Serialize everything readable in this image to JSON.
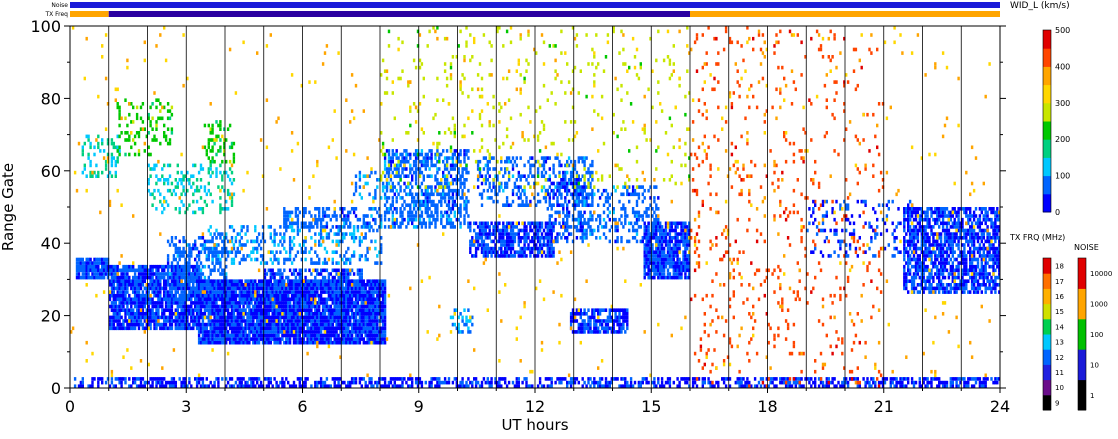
{
  "chart_data": {
    "type": "heatmap",
    "xlabel": "UT hours",
    "ylabel": "Range Gate",
    "xlim": [
      0,
      24
    ],
    "ylim": [
      0,
      100
    ],
    "x_ticks": [
      "0",
      "3",
      "6",
      "9",
      "12",
      "15",
      "18",
      "21",
      "24"
    ],
    "y_ticks": [
      "0",
      "20",
      "40",
      "60",
      "80",
      "100"
    ],
    "vertical_lines_hours": [
      1,
      2,
      3,
      4,
      5,
      6,
      7,
      8,
      9,
      10,
      11,
      12,
      13,
      14,
      15,
      16,
      17,
      18,
      19,
      20,
      21,
      22,
      23
    ],
    "top_bars": [
      {
        "label": "Noise",
        "color": "#1a1ad8"
      },
      {
        "label": "TX Freq",
        "segments": [
          {
            "from": 0,
            "to": 1,
            "color": "#ffa500"
          },
          {
            "from": 1,
            "to": 16,
            "color": "#2a00a0"
          },
          {
            "from": 16,
            "to": 24,
            "color": "#ffa500"
          }
        ]
      }
    ],
    "echo_regions": [
      {
        "x0": 0.15,
        "x1": 1.0,
        "y0": 30,
        "y1": 36,
        "density": 0.9,
        "value": 0.12
      },
      {
        "x0": 1.0,
        "x1": 3.3,
        "y0": 16,
        "y1": 34,
        "density": 0.85,
        "value": 0.1
      },
      {
        "x0": 2.5,
        "x1": 4.0,
        "y0": 24,
        "y1": 42,
        "density": 0.45,
        "value": 0.15
      },
      {
        "x0": 3.3,
        "x1": 8.1,
        "y0": 12,
        "y1": 30,
        "density": 0.95,
        "value": 0.09
      },
      {
        "x0": 5.0,
        "x1": 7.5,
        "y0": 28,
        "y1": 33,
        "density": 0.5,
        "value": 0.12
      },
      {
        "x0": 0.1,
        "x1": 24.0,
        "y0": 0,
        "y1": 3,
        "density": 0.55,
        "value": 0.08
      },
      {
        "x0": 3.5,
        "x1": 8.0,
        "y0": 34,
        "y1": 45,
        "density": 0.3,
        "value": 0.18
      },
      {
        "x0": 5.5,
        "x1": 8.0,
        "y0": 44,
        "y1": 50,
        "density": 0.4,
        "value": 0.15
      },
      {
        "x0": 0.3,
        "x1": 1.3,
        "y0": 58,
        "y1": 70,
        "density": 0.25,
        "value": 0.3
      },
      {
        "x0": 1.2,
        "x1": 2.6,
        "y0": 64,
        "y1": 80,
        "density": 0.2,
        "value": 0.45
      },
      {
        "x0": 2.0,
        "x1": 4.2,
        "y0": 48,
        "y1": 62,
        "density": 0.25,
        "value": 0.3
      },
      {
        "x0": 3.3,
        "x1": 4.2,
        "y0": 62,
        "y1": 74,
        "density": 0.25,
        "value": 0.45
      },
      {
        "x0": 7.3,
        "x1": 8.3,
        "y0": 52,
        "y1": 60,
        "density": 0.25,
        "value": 0.2
      },
      {
        "x0": 8.1,
        "x1": 10.3,
        "y0": 44,
        "y1": 66,
        "density": 0.55,
        "value": 0.15
      },
      {
        "x0": 10.3,
        "x1": 12.5,
        "y0": 36,
        "y1": 46,
        "density": 0.7,
        "value": 0.1
      },
      {
        "x0": 10.5,
        "x1": 13.5,
        "y0": 50,
        "y1": 64,
        "density": 0.35,
        "value": 0.15
      },
      {
        "x0": 12.3,
        "x1": 13.3,
        "y0": 40,
        "y1": 58,
        "density": 0.4,
        "value": 0.12
      },
      {
        "x0": 13.0,
        "x1": 15.2,
        "y0": 40,
        "y1": 56,
        "density": 0.3,
        "value": 0.15
      },
      {
        "x0": 12.9,
        "x1": 14.4,
        "y0": 15,
        "y1": 22,
        "density": 0.7,
        "value": 0.1
      },
      {
        "x0": 9.8,
        "x1": 10.4,
        "y0": 15,
        "y1": 22,
        "density": 0.4,
        "value": 0.2
      },
      {
        "x0": 14.8,
        "x1": 16.0,
        "y0": 30,
        "y1": 46,
        "density": 0.85,
        "value": 0.1
      },
      {
        "x0": 16.0,
        "x1": 21.0,
        "y0": 0,
        "y1": 100,
        "density": 0.05,
        "value": 0.85
      },
      {
        "x0": 19.0,
        "x1": 21.8,
        "y0": 36,
        "y1": 52,
        "density": 0.15,
        "value": 0.1
      },
      {
        "x0": 21.5,
        "x1": 24.0,
        "y0": 26,
        "y1": 50,
        "density": 0.7,
        "value": 0.1
      },
      {
        "x0": 8.0,
        "x1": 16.0,
        "y0": 55,
        "y1": 100,
        "density": 0.05,
        "value": 0.55
      },
      {
        "x0": 0.0,
        "x1": 24.0,
        "y0": 3,
        "y1": 100,
        "density": 0.012,
        "value": 0.7
      }
    ]
  },
  "colorbars": {
    "velocity": {
      "label": "WID_L (km/s)",
      "ticks": [
        "0",
        "100",
        "200",
        "300",
        "400",
        "500"
      ],
      "colors": [
        "#0000ff",
        "#0064ff",
        "#00c8ff",
        "#00d080",
        "#00c800",
        "#c8e600",
        "#ffd700",
        "#ffa500",
        "#ff4500",
        "#e00000"
      ]
    },
    "txfreq": {
      "label": "TX FRQ (MHz)",
      "ticks": [
        "9",
        "10",
        "11",
        "12",
        "13",
        "14",
        "15",
        "16",
        "17",
        "18"
      ],
      "colors": [
        "#000000",
        "#6a0d8a",
        "#2020e0",
        "#0064ff",
        "#00c8ff",
        "#00d050",
        "#d0e000",
        "#ffb000",
        "#ff7000",
        "#e00000"
      ]
    },
    "noise": {
      "label": "NOISE",
      "ticks": [
        "1",
        "10",
        "100",
        "1000",
        "10000"
      ],
      "colors": [
        "#000000",
        "#1a1ad8",
        "#00c000",
        "#ffa500",
        "#e00000"
      ]
    }
  }
}
